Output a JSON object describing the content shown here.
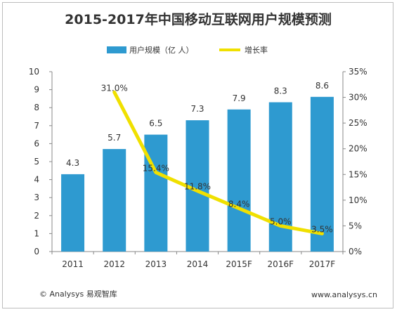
{
  "chart_data": {
    "type": "bar",
    "title": "2015-2017年中国移动互联网用户规模预测",
    "categories": [
      "2011",
      "2012",
      "2013",
      "2014",
      "2015F",
      "2016F",
      "2017F"
    ],
    "series": [
      {
        "name": "用户规模（亿 人）",
        "type": "bar",
        "axis": "left",
        "values": [
          4.3,
          5.7,
          6.5,
          7.3,
          7.9,
          8.3,
          8.6
        ],
        "labels": [
          "4.3",
          "5.7",
          "6.5",
          "7.3",
          "7.9",
          "8.3",
          "8.6"
        ]
      },
      {
        "name": "增长率",
        "type": "line",
        "axis": "right",
        "values": [
          null,
          31.0,
          15.4,
          11.8,
          8.4,
          5.0,
          3.5
        ],
        "labels": [
          "",
          "31.0%",
          "15.4%",
          "11.8%",
          "8.4%",
          "5.0%",
          "3.5%"
        ]
      }
    ],
    "y_left": {
      "range": [
        0,
        10
      ],
      "ticks": [
        "0",
        "1",
        "2",
        "3",
        "4",
        "5",
        "6",
        "7",
        "8",
        "9",
        "10"
      ]
    },
    "y_right": {
      "range": [
        0,
        35
      ],
      "ticks": [
        "0%",
        "5%",
        "10%",
        "15%",
        "20%",
        "25%",
        "30%",
        "35%"
      ]
    },
    "legend_position": "top",
    "grid": false,
    "colors": {
      "bar": "#2e9ad0",
      "line": "#f0e000",
      "axis": "#888888",
      "text": "#333333"
    }
  },
  "footer": {
    "left": "© Analysys 易观智库",
    "right": "www.analysys.cn"
  }
}
